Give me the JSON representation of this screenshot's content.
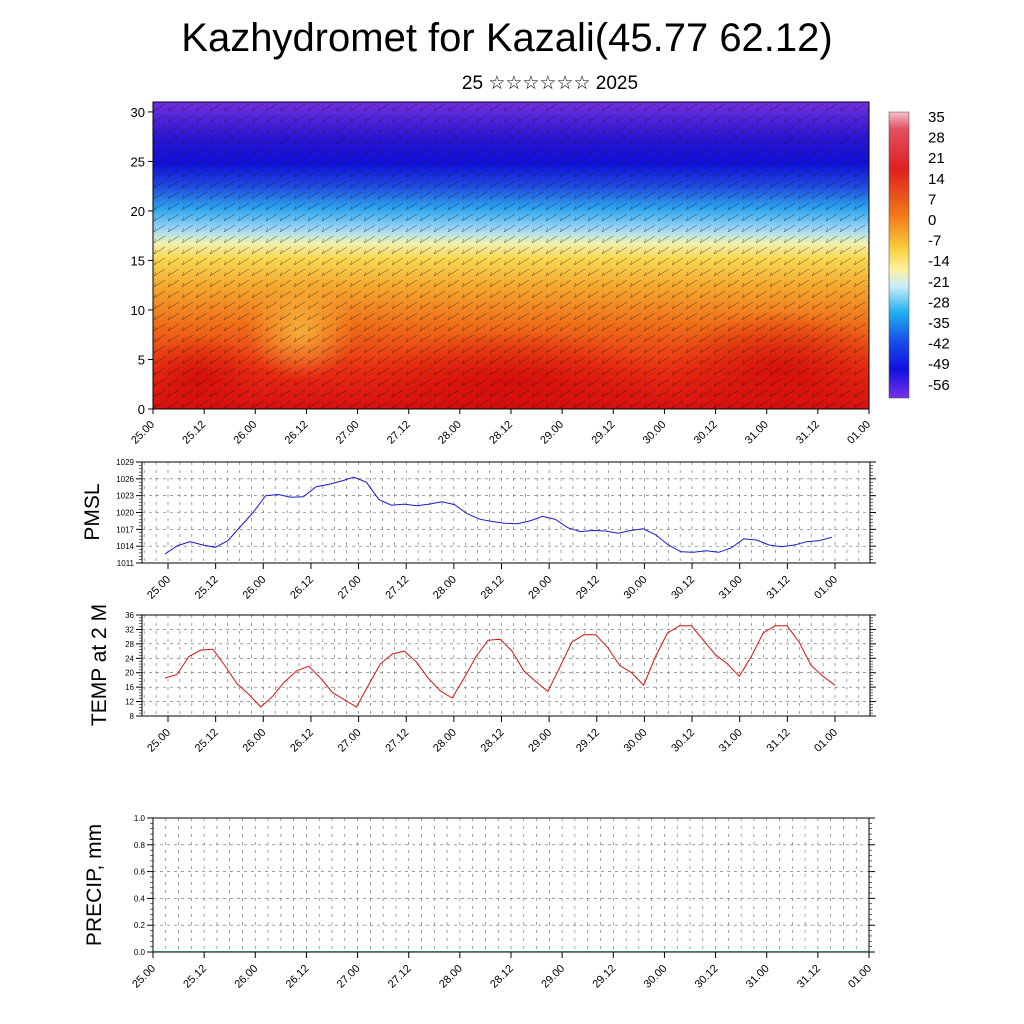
{
  "title": "Kazhydromet for Kazali(45.77 62.12)",
  "subtitle": "25 ☆☆☆☆☆☆ 2025",
  "colors": {
    "pmsl": "#1a1acc",
    "temp": "#d41414",
    "precip": "#0a5a3a"
  },
  "chart_data": [
    {
      "type": "heatmap",
      "name": "cross-section",
      "x_tick_labels": [
        "25.00",
        "25.12",
        "26.00",
        "26.12",
        "27.00",
        "27.12",
        "28.00",
        "28.12",
        "29.00",
        "29.12",
        "30.00",
        "30.12",
        "31.00",
        "31.12",
        "01.00"
      ],
      "y_tick_labels": [
        "0",
        "5",
        "10",
        "15",
        "20",
        "25",
        "30"
      ],
      "ylim": [
        0,
        31
      ],
      "colorbar": {
        "labels": [
          "35",
          "28",
          "21",
          "14",
          "7",
          "0",
          "-7",
          "-14",
          "-21",
          "-28",
          "-35",
          "-42",
          "-49",
          "-56"
        ],
        "range": [
          -63,
          42
        ]
      },
      "grid": false
    },
    {
      "type": "line",
      "name": "pmsl",
      "ylabel": "PMSL",
      "x_tick_labels": [
        "25.00",
        "25.12",
        "26.00",
        "26.12",
        "27.00",
        "27.12",
        "28.00",
        "28.12",
        "29.00",
        "29.12",
        "30.00",
        "30.12",
        "31.00",
        "31.12",
        "01.00"
      ],
      "y_tick_labels": [
        "1011",
        "1014",
        "1017",
        "1020",
        "1023",
        "1026",
        "1029"
      ],
      "ylim": [
        1011,
        1029
      ],
      "grid": true,
      "values": [
        1012.6,
        1014.1,
        1014.8,
        1014.2,
        1013.8,
        1015.0,
        1017.5,
        1020.0,
        1023.0,
        1023.2,
        1022.7,
        1022.8,
        1024.6,
        1025.0,
        1025.6,
        1026.3,
        1025.4,
        1022.3,
        1021.3,
        1021.5,
        1021.2,
        1021.5,
        1021.9,
        1021.4,
        1019.8,
        1018.8,
        1018.4,
        1018.1,
        1018.0,
        1018.5,
        1019.3,
        1018.8,
        1017.3,
        1016.6,
        1016.8,
        1016.7,
        1016.3,
        1016.8,
        1017.1,
        1016.0,
        1014.2,
        1013.0,
        1012.9,
        1013.2,
        1012.9,
        1013.7,
        1015.3,
        1015.1,
        1014.2,
        1013.9,
        1014.2,
        1014.8,
        1015.0,
        1015.6
      ]
    },
    {
      "type": "line",
      "name": "temp",
      "ylabel": "TEMP at 2 M",
      "x_tick_labels": [
        "25.00",
        "25.12",
        "26.00",
        "26.12",
        "27.00",
        "27.12",
        "28.00",
        "28.12",
        "29.00",
        "29.12",
        "30.00",
        "30.12",
        "31.00",
        "31.12",
        "01.00"
      ],
      "y_tick_labels": [
        "8",
        "12",
        "16",
        "20",
        "24",
        "28",
        "32",
        "36"
      ],
      "ylim": [
        8,
        36
      ],
      "grid": true,
      "values": [
        18.5,
        19.5,
        24.5,
        26.3,
        26.5,
        22.0,
        17.0,
        14.0,
        10.5,
        13.5,
        17.5,
        20.5,
        21.8,
        18.5,
        14.5,
        12.5,
        10.5,
        16.5,
        22.5,
        25.2,
        26.0,
        23.0,
        18.5,
        15.0,
        13.0,
        18.5,
        24.5,
        29.0,
        29.3,
        26.0,
        20.5,
        17.5,
        14.8,
        21.5,
        28.5,
        30.5,
        30.5,
        27.0,
        22.0,
        20.0,
        16.5,
        24.5,
        31.0,
        33.0,
        33.0,
        29.0,
        25.0,
        22.5,
        19.0,
        24.5,
        31.0,
        33.0,
        33.0,
        28.5,
        22.0,
        19.0,
        16.5
      ]
    },
    {
      "type": "bar",
      "name": "precip",
      "ylabel": "PRECIP, mm",
      "x_tick_labels": [
        "25.00",
        "25.12",
        "26.00",
        "26.12",
        "27.00",
        "27.12",
        "28.00",
        "28.12",
        "29.00",
        "29.12",
        "30.00",
        "30.12",
        "31.00",
        "31.12",
        "01.00"
      ],
      "y_tick_labels": [
        "0.0",
        "0.2",
        "0.4",
        "0.6",
        "0.8",
        "1.0"
      ],
      "ylim": [
        0,
        1
      ],
      "grid": true,
      "values": [
        0,
        0,
        0,
        0,
        0,
        0,
        0,
        0,
        0,
        0,
        0,
        0,
        0,
        0,
        0,
        0,
        0,
        0,
        0,
        0,
        0,
        0,
        0,
        0,
        0,
        0,
        0,
        0,
        0,
        0,
        0,
        0,
        0,
        0,
        0,
        0,
        0,
        0,
        0,
        0,
        0,
        0,
        0,
        0,
        0,
        0,
        0,
        0,
        0,
        0,
        0,
        0,
        0,
        0,
        0,
        0
      ]
    }
  ]
}
